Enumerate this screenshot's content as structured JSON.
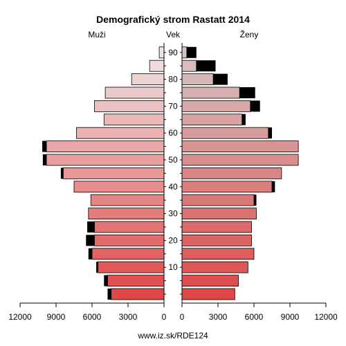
{
  "chart_data": {
    "type": "bar",
    "title": "Demografický strom Rastatt 2014",
    "left_label": "Muži",
    "center_label": "Vek",
    "right_label": "Ženy",
    "source": "www.iz.sk/RDE124",
    "age_groups": [
      "0",
      "5",
      "10",
      "15",
      "20",
      "25",
      "30",
      "35",
      "40",
      "45",
      "50",
      "55",
      "60",
      "65",
      "70",
      "75",
      "80",
      "85",
      "90"
    ],
    "age_tick_labels": [
      "10",
      "20",
      "30",
      "40",
      "50",
      "60",
      "70",
      "80",
      "90"
    ],
    "age_tick_values": [
      10,
      20,
      30,
      40,
      50,
      60,
      70,
      80,
      90
    ],
    "x_ticks_left": [
      "12000",
      "9000",
      "6000",
      "3000",
      "0"
    ],
    "x_ticks_right": [
      "0",
      "3000",
      "6000",
      "9000",
      "12000"
    ],
    "xlim": [
      0,
      12000
    ],
    "series": [
      {
        "name": "Muži",
        "values": [
          4400,
          4700,
          5500,
          6000,
          5800,
          5800,
          6300,
          6100,
          7500,
          8400,
          9800,
          9800,
          7300,
          5000,
          5800,
          4900,
          2700,
          1200,
          400
        ],
        "excess": [
          300,
          300,
          150,
          300,
          700,
          600,
          0,
          0,
          0,
          200,
          300,
          350,
          0,
          0,
          0,
          0,
          0,
          0,
          0
        ]
      },
      {
        "name": "Ženy",
        "values": [
          4400,
          4700,
          5500,
          6000,
          5800,
          5800,
          6200,
          6000,
          7500,
          8300,
          9700,
          9700,
          7200,
          5000,
          5700,
          4800,
          2600,
          1200,
          400
        ],
        "excess": [
          0,
          0,
          0,
          0,
          0,
          0,
          0,
          200,
          250,
          0,
          0,
          0,
          300,
          300,
          800,
          1300,
          1200,
          1600,
          800
        ]
      }
    ],
    "colors": {
      "male_young": "#e04848",
      "male_old": "#f0e4e4",
      "female_young": "#e04848",
      "female_old": "#d4c4c4",
      "excess": "#000000"
    }
  }
}
